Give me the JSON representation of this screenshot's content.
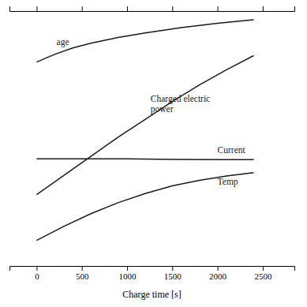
{
  "chart_data": {
    "type": "line",
    "title": "",
    "xlabel": "Charge time [s]",
    "ylabel": "",
    "xlim": [
      -300,
      2850
    ],
    "ylim": [
      0.0,
      1.0
    ],
    "xticks": [
      0,
      500,
      1000,
      1500,
      2000,
      2500
    ],
    "yticks": [],
    "tick_labels": "x",
    "grid": false,
    "color": "#1a1a1a",
    "series": [
      {
        "x": [
          0,
          200,
          400,
          600,
          900,
          1200,
          1600,
          2000,
          2400
        ],
        "values": [
          0.8,
          0.83,
          0.855,
          0.874,
          0.896,
          0.914,
          0.935,
          0.952,
          0.966
        ]
      },
      {
        "x": [
          0,
          300,
          600,
          900,
          1200,
          1500,
          1800,
          2100,
          2400
        ],
        "values": [
          0.28,
          0.355,
          0.43,
          0.505,
          0.575,
          0.645,
          0.71,
          0.77,
          0.825
        ]
      },
      {
        "x": [
          0,
          500,
          1000,
          1500,
          2000,
          2400
        ],
        "values": [
          0.42,
          0.42,
          0.42,
          0.418,
          0.417,
          0.417
        ]
      },
      {
        "x": [
          0,
          300,
          600,
          900,
          1200,
          1500,
          1800,
          2100,
          2400
        ],
        "values": [
          0.1,
          0.155,
          0.205,
          0.248,
          0.284,
          0.314,
          0.336,
          0.353,
          0.366
        ]
      }
    ],
    "annotations": [
      {
        "text": "age",
        "x": 220,
        "y": 0.88
      },
      {
        "text": "Charged electric\npower",
        "x": 1260,
        "y": 0.635
      },
      {
        "text": "Current",
        "x": 2000,
        "y": 0.455
      },
      {
        "text": "Temp",
        "x": 2000,
        "y": 0.33
      }
    ]
  }
}
